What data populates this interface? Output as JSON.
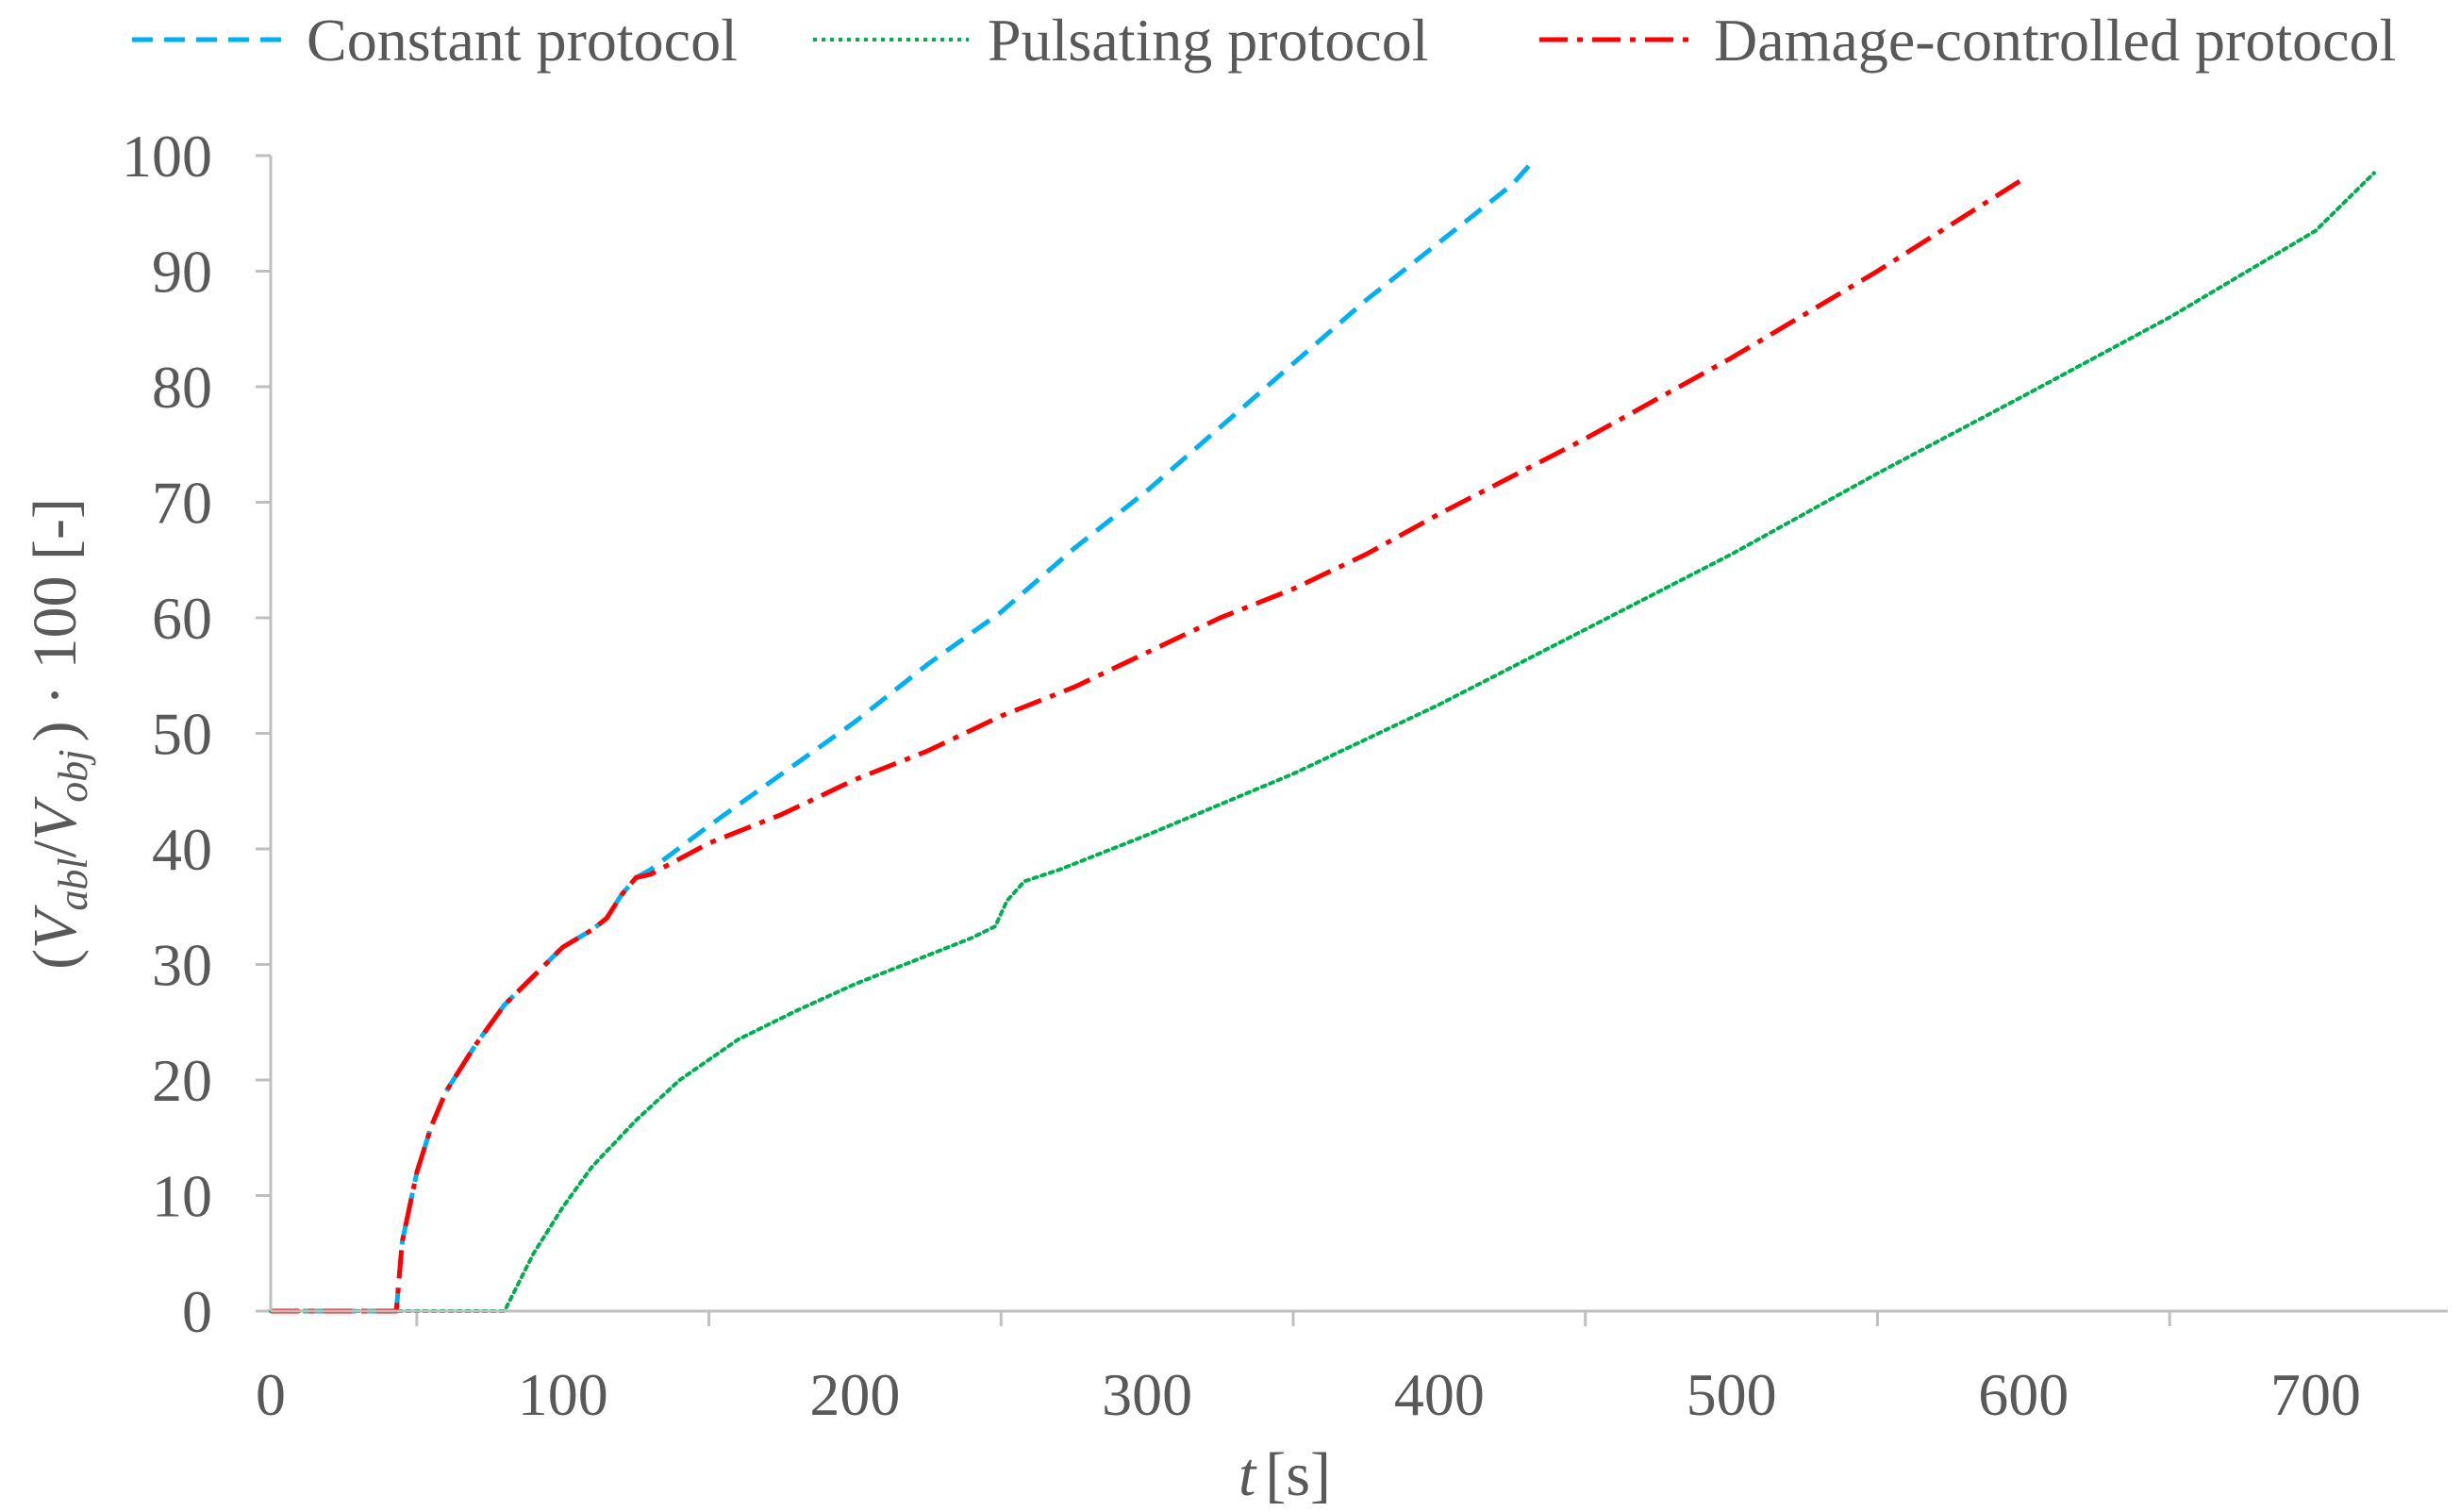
{
  "chart_data": {
    "type": "line",
    "title": "",
    "xlabel": {
      "var": "t",
      "unit": "[s]"
    },
    "ylabel": {
      "open": "(",
      "v1": "V",
      "s1": "abl",
      "slash": "/",
      "v2": "V",
      "s2": "obj",
      "close": ") · 100 [-]"
    },
    "xlim": [
      0,
      750
    ],
    "ylim": [
      0,
      100
    ],
    "x_ticks": [
      "0",
      "100",
      "200",
      "300",
      "400",
      "500",
      "600",
      "700"
    ],
    "y_ticks": [
      "0",
      "10",
      "20",
      "30",
      "40",
      "50",
      "60",
      "70",
      "80",
      "90",
      "100"
    ],
    "grid": false,
    "legend_position": "top",
    "series": [
      {
        "name": "Constant protocol",
        "color": "#00B0F0",
        "style": "dashed",
        "x": [
          0,
          43,
          45,
          50,
          55,
          60,
          70,
          80,
          90,
          100,
          110,
          115,
          120,
          125,
          130,
          150,
          175,
          200,
          225,
          250,
          275,
          300,
          325,
          350,
          375,
          400,
          425,
          432
        ],
        "y": [
          0,
          0,
          6,
          12,
          16,
          19,
          23,
          26.5,
          29,
          31.5,
          33,
          34,
          36,
          37.5,
          38.2,
          42,
          46.5,
          51,
          56,
          60.5,
          66,
          71,
          76.5,
          82,
          87.5,
          92.5,
          97.5,
          99.5
        ]
      },
      {
        "name": "Pulsating protocol",
        "color": "#00B050",
        "style": "dotted",
        "x": [
          0,
          80,
          82,
          90,
          100,
          110,
          125,
          140,
          160,
          180,
          200,
          225,
          240,
          248,
          252,
          258,
          270,
          300,
          350,
          400,
          450,
          500,
          550,
          600,
          650,
          700,
          720
        ],
        "y": [
          0,
          0,
          1,
          5,
          9,
          12.5,
          16.5,
          20,
          23.5,
          26,
          28.3,
          30.8,
          32.3,
          33.3,
          35.5,
          37.2,
          38.2,
          41.2,
          46.5,
          52.5,
          59,
          65.5,
          72.5,
          79.2,
          86,
          93.5,
          98.5
        ]
      },
      {
        "name": "Damage-controlled protocol",
        "color": "#FF0000",
        "style": "dashdot",
        "x": [
          0,
          43,
          45,
          50,
          55,
          60,
          70,
          80,
          90,
          100,
          110,
          115,
          120,
          125,
          130,
          150,
          175,
          200,
          225,
          250,
          275,
          300,
          325,
          350,
          375,
          400,
          450,
          500,
          550,
          600
        ],
        "y": [
          0,
          0,
          6,
          12,
          16,
          19,
          23,
          26.5,
          29,
          31.5,
          33,
          34,
          36,
          37.5,
          37.8,
          40.5,
          43,
          46,
          48.5,
          51.5,
          54,
          57,
          60,
          62.5,
          65.5,
          69,
          75.5,
          82.5,
          90,
          98
        ]
      }
    ]
  }
}
